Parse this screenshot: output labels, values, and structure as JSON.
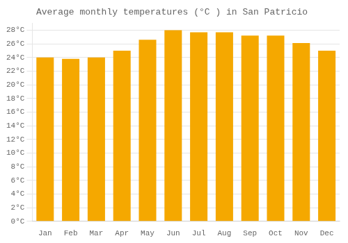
{
  "chart_data": {
    "type": "bar",
    "title": "Average monthly temperatures (°C ) in San Patricio",
    "categories": [
      "Jan",
      "Feb",
      "Mar",
      "Apr",
      "May",
      "Jun",
      "Jul",
      "Aug",
      "Sep",
      "Oct",
      "Nov",
      "Dec"
    ],
    "values": [
      24.0,
      23.8,
      24.0,
      25.0,
      26.6,
      28.0,
      27.7,
      27.7,
      27.2,
      27.2,
      26.1,
      25.0
    ],
    "color": "#F5A800",
    "ylim": [
      0,
      29
    ],
    "yticks": [
      {
        "value": 0,
        "label": "0°C"
      },
      {
        "value": 2,
        "label": "2°C"
      },
      {
        "value": 4,
        "label": "4°C"
      },
      {
        "value": 6,
        "label": "6°C"
      },
      {
        "value": 8,
        "label": "8°C"
      },
      {
        "value": 10,
        "label": "10°C"
      },
      {
        "value": 12,
        "label": "12°C"
      },
      {
        "value": 14,
        "label": "14°C"
      },
      {
        "value": 16,
        "label": "16°C"
      },
      {
        "value": 18,
        "label": "18°C"
      },
      {
        "value": 20,
        "label": "20°C"
      },
      {
        "value": 22,
        "label": "22°C"
      },
      {
        "value": 24,
        "label": "24°C"
      },
      {
        "value": 26,
        "label": "26°C"
      },
      {
        "value": 28,
        "label": "28°C"
      }
    ],
    "grid": true
  }
}
